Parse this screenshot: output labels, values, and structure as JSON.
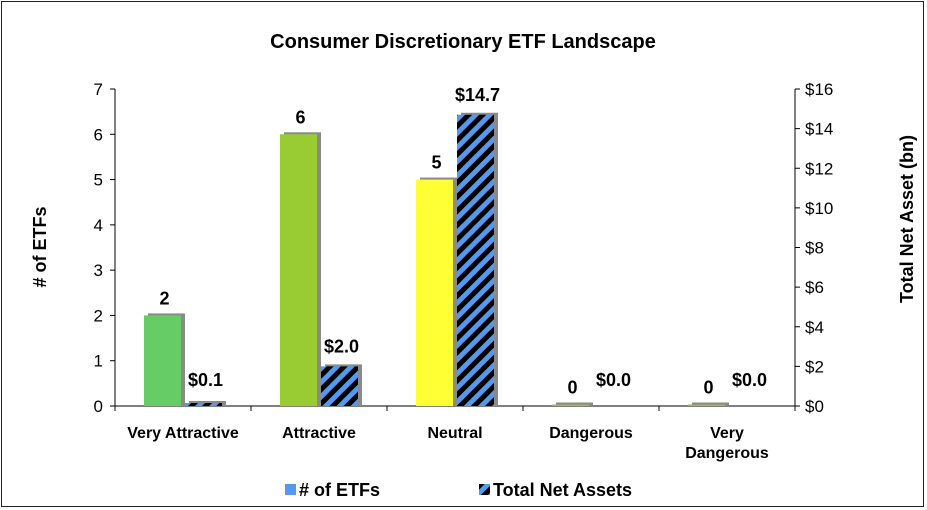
{
  "chart_data": {
    "type": "bar",
    "title": "Consumer Discretionary ETF Landscape",
    "ylabel_left": "# of ETFs",
    "ylabel_right": "Total Net Asset (bn)",
    "categories": [
      [
        "Very Attractive"
      ],
      [
        "Attractive"
      ],
      [
        "Neutral"
      ],
      [
        "Dangerous"
      ],
      [
        "Very",
        "Dangerous"
      ]
    ],
    "y_left": {
      "min": 0,
      "max": 7,
      "step": 1,
      "ticks": [
        "0",
        "1",
        "2",
        "3",
        "4",
        "5",
        "6",
        "7"
      ]
    },
    "y_right": {
      "min": 0,
      "max": 16,
      "step": 2,
      "ticks": [
        "$0",
        "$2",
        "$4",
        "$6",
        "$8",
        "$10",
        "$12",
        "$14",
        "$16"
      ]
    },
    "series": [
      {
        "name": "# of ETFs",
        "axis": "left",
        "values": [
          2,
          6,
          5,
          0,
          0
        ],
        "labels": [
          "2",
          "6",
          "5",
          "0",
          "0"
        ],
        "colors": [
          "#66cc66",
          "#99cc33",
          "#ffff33",
          "#9bbb59",
          "#9bbb59"
        ]
      },
      {
        "name": "Total Net Assets",
        "axis": "right",
        "values": [
          0.1,
          2.0,
          14.7,
          0.0,
          0.0
        ],
        "labels": [
          "$0.1",
          "$2.0",
          "$14.7",
          "$0.0",
          "$0.0"
        ],
        "colors": {
          "stripe_a": "#5599ee",
          "stripe_b": "#000000"
        }
      }
    ],
    "legend_placement": "bottom",
    "legend_colors": {
      "etfs": "#5599ee"
    },
    "grid": false
  }
}
